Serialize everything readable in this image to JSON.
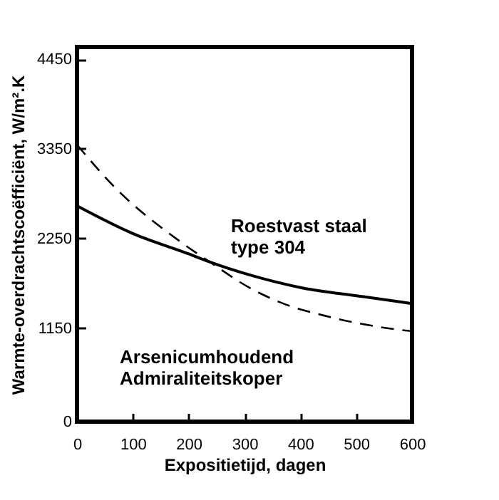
{
  "chart_data": {
    "type": "line",
    "xlabel": "Expositietijd, dagen",
    "ylabel": "Warmte-overdrachtscoëfficiënt, W/m².K",
    "xlim": [
      0,
      600
    ],
    "xticks": [
      0,
      100,
      200,
      300,
      400,
      500,
      600
    ],
    "ylim": [
      0,
      4600
    ],
    "yticks": [
      0,
      1150,
      2250,
      3350,
      4450
    ],
    "grid": false,
    "marker": "none",
    "series": [
      {
        "name": "Roestvast staal type 304",
        "color": "#000000",
        "line_style": "solid",
        "x": [
          0,
          100,
          200,
          238,
          310,
          405,
          507,
          600
        ],
        "values": [
          2650,
          2310,
          2060,
          1960,
          1800,
          1640,
          1540,
          1450
        ]
      },
      {
        "name": "Arsenicumhoudend Admiraliteitskoper",
        "color": "#000000",
        "line_style": "dashed",
        "x": [
          0,
          63,
          187,
          238,
          310,
          362,
          450,
          535,
          600
        ],
        "values": [
          3400,
          2910,
          2200,
          1960,
          1640,
          1470,
          1290,
          1170,
          1110
        ]
      }
    ]
  }
}
